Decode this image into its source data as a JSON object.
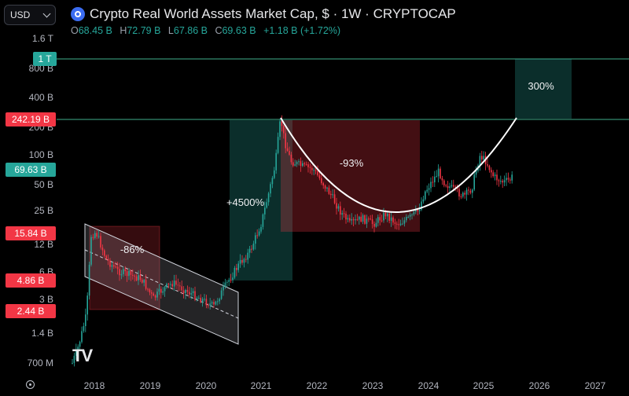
{
  "header": {
    "title": "Crypto Real World Assets Market Cap, $ · 1W · CRYPTOCAP",
    "ohlc": [
      {
        "key": "O",
        "value": "68.45 B"
      },
      {
        "key": "H",
        "value": "72.79 B"
      },
      {
        "key": "L",
        "value": "67.86 B"
      },
      {
        "key": "C",
        "value": "69.63 B"
      }
    ],
    "change": "+1.18 B (+1.72%)",
    "logo_icon": "crypto-coin-icon"
  },
  "toolbar": {
    "currency": "USD",
    "dropdown_icon": "chevron-down-icon",
    "settings_icon": "gear-icon",
    "brand_logo": "TV"
  },
  "chart_data": {
    "type": "candlestick",
    "scale": "log",
    "x_ticks": [
      "2018",
      "2019",
      "2020",
      "2021",
      "2022",
      "2023",
      "2024",
      "2025",
      "2026",
      "2027"
    ],
    "y_ticks": [
      "1.6 T",
      "800 B",
      "400 B",
      "200 B",
      "100 B",
      "50 B",
      "25 B",
      "12 B",
      "6 B",
      "3 B",
      "1.4 B",
      "700 M"
    ],
    "price_labels": [
      {
        "text": "1 T",
        "color": "#26a69a"
      },
      {
        "text": "242.19 B",
        "color": "#f23645"
      },
      {
        "text": "69.63 B",
        "color": "#26a69a"
      },
      {
        "text": "15.84 B",
        "color": "#f23645"
      },
      {
        "text": "4.86 B",
        "color": "#f23645"
      },
      {
        "text": "2.44 B",
        "color": "#f23645"
      }
    ],
    "annotations": [
      "-86%",
      "+4500%",
      "-93%",
      "300%"
    ],
    "overlays": [
      "descending channel 2018-2020",
      "rounded bottom arc 2021-2025",
      "target zone 1 T"
    ],
    "colors": {
      "up": "#26a69a",
      "down": "#f23645",
      "background": "#000000"
    }
  }
}
